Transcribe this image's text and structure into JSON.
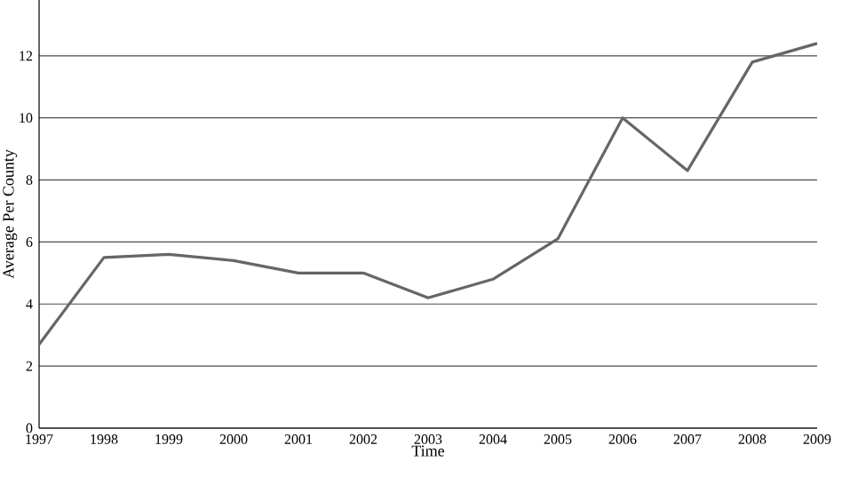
{
  "chart_data": {
    "type": "line",
    "xlabel": "Time",
    "ylabel": "Average Per County",
    "x": [
      1997,
      1998,
      1999,
      2000,
      2001,
      2002,
      2003,
      2004,
      2005,
      2006,
      2007,
      2008,
      2009
    ],
    "series": [
      {
        "color": "#666666",
        "values": [
          2.7,
          5.5,
          5.6,
          5.4,
          5.0,
          5.0,
          4.2,
          4.8,
          6.1,
          10.0,
          8.3,
          11.8,
          12.4
        ]
      }
    ],
    "xlim": [
      1997,
      2009
    ],
    "ylim": [
      0,
      13.8
    ],
    "xticks": [
      1997,
      1998,
      1999,
      2000,
      2001,
      2002,
      2003,
      2004,
      2005,
      2006,
      2007,
      2008,
      2009
    ],
    "yticks": [
      0,
      2,
      4,
      6,
      8,
      10,
      12
    ],
    "grid": "y",
    "marker": "none",
    "line_style": "solid"
  }
}
